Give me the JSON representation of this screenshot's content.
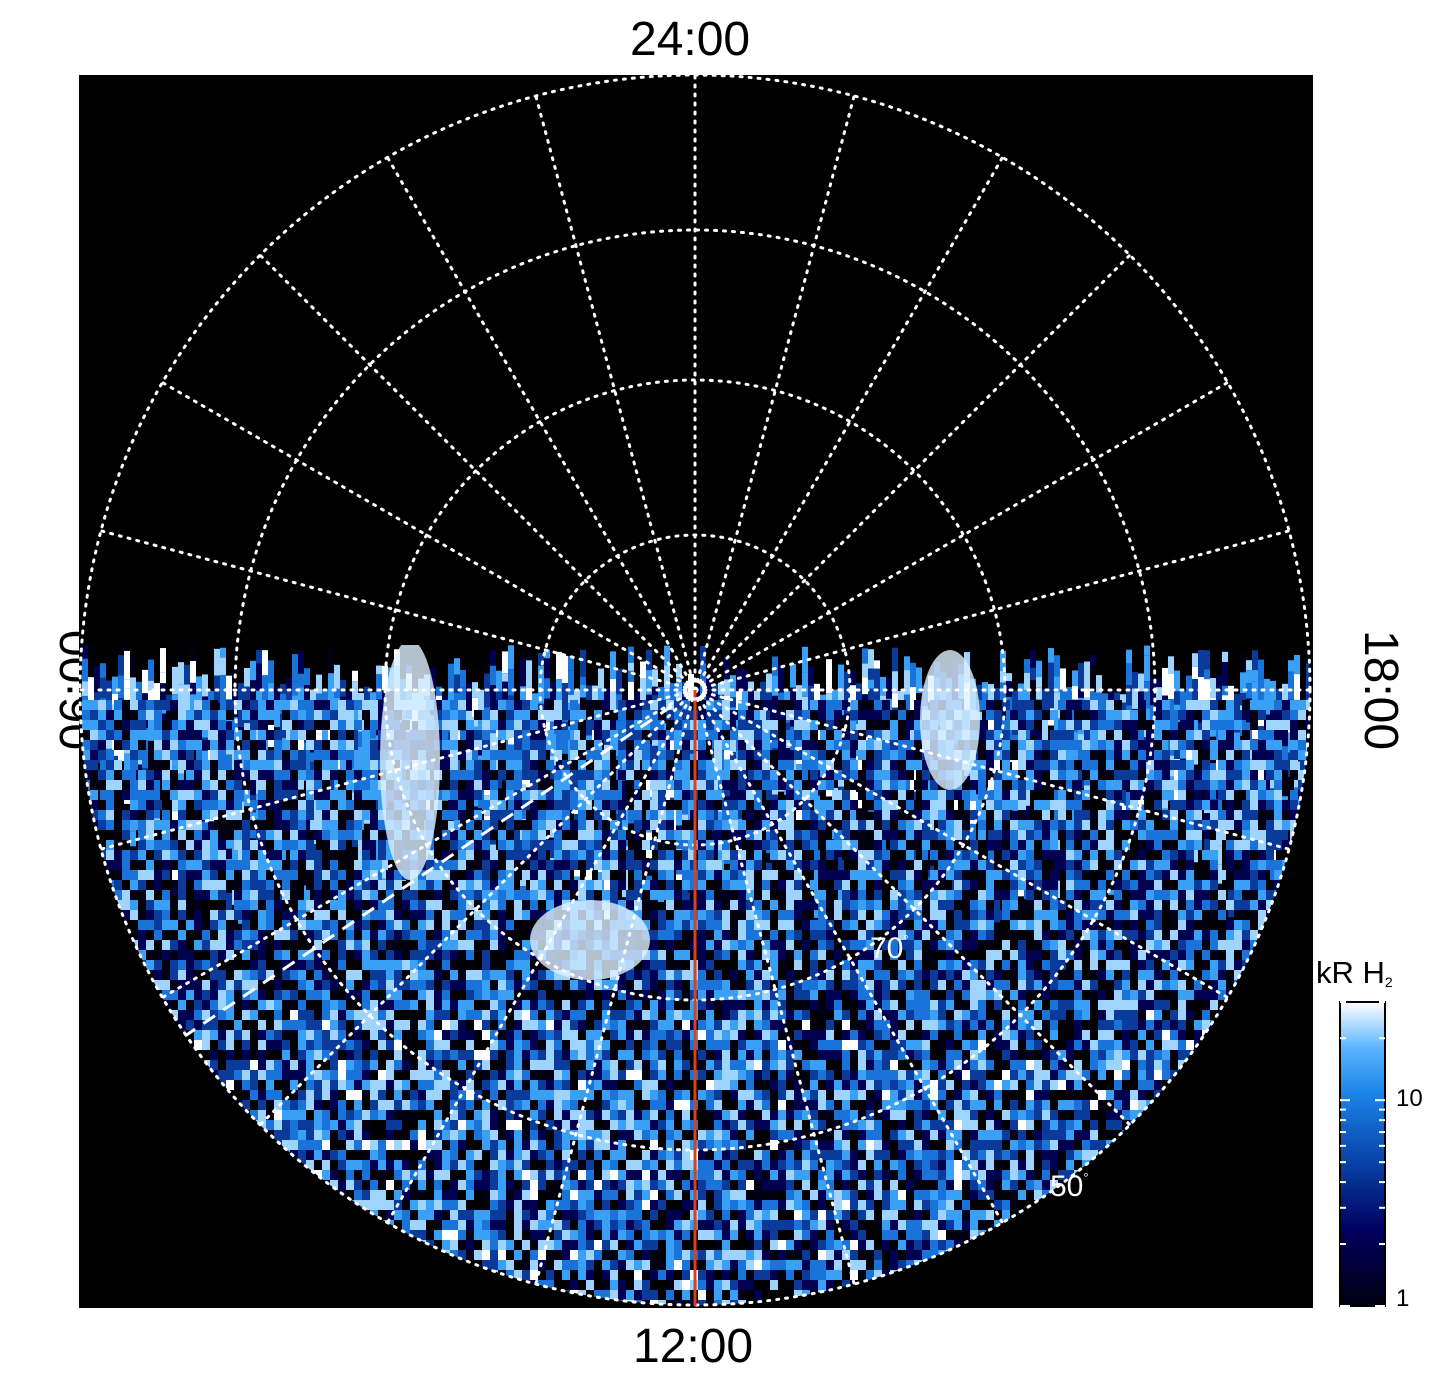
{
  "time_labels": {
    "top": "24:00",
    "bottom": "12:00",
    "left": "06:00",
    "right": "18:00"
  },
  "latitude_labels": {
    "inner": "70",
    "outer": "50",
    "degree": "°"
  },
  "colorbar": {
    "title": "kR H",
    "title_sub": "2",
    "ticks": [
      "10",
      "1"
    ],
    "scale": "log",
    "range": [
      1,
      30
    ]
  },
  "colors": {
    "background": "#000000",
    "grid": "#ffffff",
    "meridian_line": "#d9411b",
    "colormap": [
      "#000010",
      "#000050",
      "#0a3a9a",
      "#1a73d9",
      "#3aa0f5",
      "#9fd4ff",
      "#ffffff"
    ]
  },
  "random_seed": 7
}
